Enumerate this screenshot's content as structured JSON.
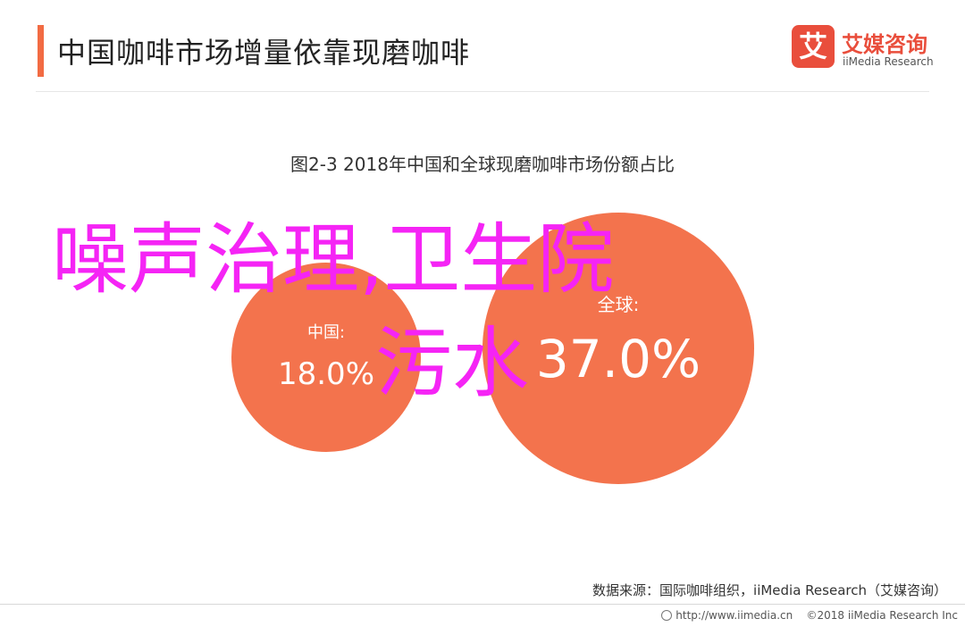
{
  "header": {
    "title": "中国咖啡市场增量依靠现磨咖啡"
  },
  "logo": {
    "mark": "艾",
    "name_cn": "艾媒咨询",
    "name_en": "iiMedia Research"
  },
  "colors": {
    "accent": "#f26b43",
    "bubble": "#f26b43",
    "logo": "#e94e3c",
    "overlay": "#f524f5"
  },
  "chart_data": {
    "type": "bubble",
    "title": "图2-3 2018年中国和全球现磨咖啡市场份额占比",
    "series": [
      {
        "name": "中国",
        "value": 18.0,
        "label": "中国:",
        "value_label": "18.0%"
      },
      {
        "name": "全球",
        "value": 37.0,
        "label": "全球:",
        "value_label": "37.0%"
      }
    ],
    "unit": "%"
  },
  "overlay_text": {
    "line1": "噪声治理,卫生院",
    "line2": "污水"
  },
  "source": "数据来源：国际咖啡组织，iiMedia Research（艾媒咨询）",
  "footer": {
    "url": "http://www.iimedia.cn",
    "copyright": "©2018  iiMedia Research  Inc"
  }
}
